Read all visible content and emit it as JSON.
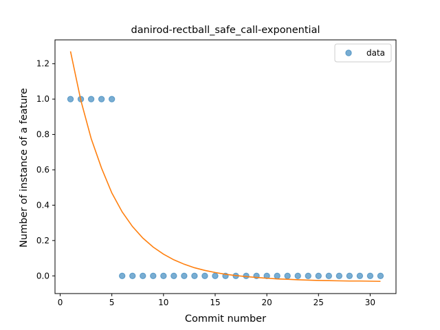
{
  "chart_data": {
    "type": "scatter",
    "title": "danirod-rectball_safe_call-exponential",
    "xlabel": "Commit number",
    "ylabel": "Number of instance of a feature",
    "xlim": [
      -0.5,
      32.5
    ],
    "ylim": [
      -0.1,
      1.335
    ],
    "xticks": [
      0,
      5,
      10,
      15,
      20,
      25,
      30
    ],
    "yticks": [
      0.0,
      0.2,
      0.4,
      0.6,
      0.8,
      1.0,
      1.2
    ],
    "ytick_labels": [
      "0.0",
      "0.2",
      "0.4",
      "0.6",
      "0.8",
      "1.0",
      "1.2"
    ],
    "grid": false,
    "legend": {
      "placement": "top-right",
      "entries": [
        "data"
      ]
    },
    "series": [
      {
        "name": "data",
        "kind": "scatter",
        "color": "#1f77b4",
        "x": [
          1,
          2,
          3,
          4,
          5,
          6,
          7,
          8,
          9,
          10,
          11,
          12,
          13,
          14,
          15,
          16,
          17,
          18,
          19,
          20,
          21,
          22,
          23,
          24,
          25,
          26,
          27,
          28,
          29,
          30,
          31
        ],
        "y": [
          1,
          1,
          1,
          1,
          1,
          0,
          0,
          0,
          0,
          0,
          0,
          0,
          0,
          0,
          0,
          0,
          0,
          0,
          0,
          0,
          0,
          0,
          0,
          0,
          0,
          0,
          0,
          0,
          0,
          0,
          0
        ]
      },
      {
        "kind": "line",
        "color": "#ff7f0e",
        "x": [
          1,
          2,
          3,
          4,
          5,
          6,
          7,
          8,
          9,
          10,
          11,
          12,
          13,
          14,
          15,
          16,
          17,
          18,
          19,
          20,
          21,
          22,
          23,
          24,
          25,
          26,
          27,
          28,
          29,
          30,
          31
        ],
        "y": [
          1.27,
          0.993,
          0.777,
          0.61,
          0.469,
          0.362,
          0.279,
          0.214,
          0.163,
          0.123,
          0.091,
          0.066,
          0.046,
          0.031,
          0.019,
          0.009,
          0.002,
          -0.004,
          -0.009,
          -0.013,
          -0.017,
          -0.019,
          -0.022,
          -0.024,
          -0.026,
          -0.027,
          -0.028,
          -0.029,
          -0.029,
          -0.03,
          -0.031
        ]
      }
    ]
  }
}
